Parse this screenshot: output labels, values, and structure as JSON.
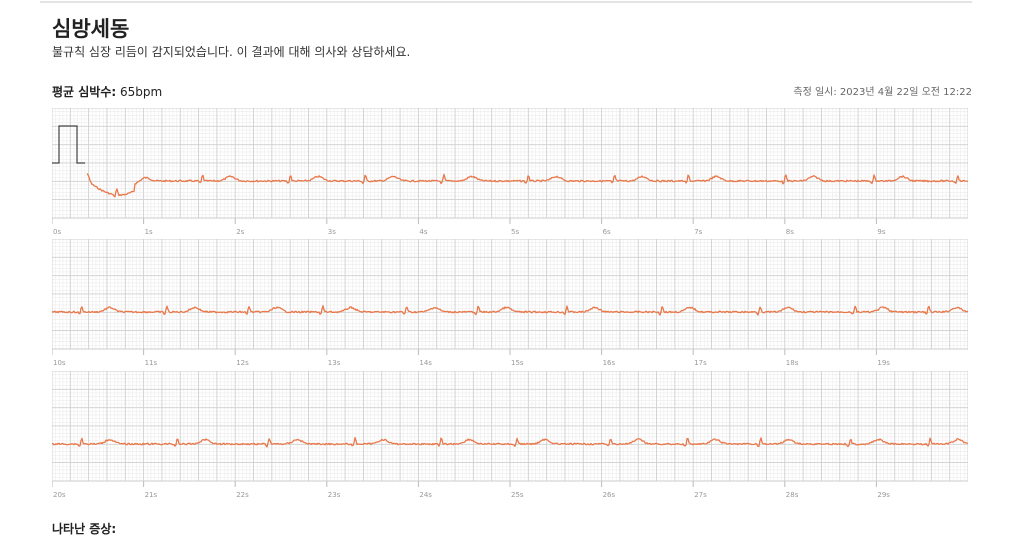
{
  "header": {
    "title": "심방세동",
    "subtitle": "불규칙 심장 리듬이 감지되었습니다. 이 결과에 대해 의사와 상담하세요.",
    "avg_hr_label": "평균 심박수:",
    "avg_hr_value": "65bpm",
    "measured_at": "측정 일시: 2023년 4월 22일 오전 12:22"
  },
  "ecg": {
    "trace_color": "#e8784a",
    "strips": [
      {
        "start_s": 0,
        "ticks": [
          "0s",
          "1s",
          "2s",
          "3s",
          "4s",
          "5s",
          "6s",
          "7s",
          "8s",
          "9s"
        ],
        "calibration_pulse": true
      },
      {
        "start_s": 10,
        "ticks": [
          "10s",
          "11s",
          "12s",
          "13s",
          "14s",
          "15s",
          "16s",
          "17s",
          "18s",
          "19s"
        ],
        "calibration_pulse": false
      },
      {
        "start_s": 20,
        "ticks": [
          "20s",
          "21s",
          "22s",
          "23s",
          "24s",
          "25s",
          "26s",
          "27s",
          "28s",
          "29s"
        ],
        "calibration_pulse": false
      }
    ]
  },
  "footer": {
    "symptoms_label": "나타난 증상:"
  }
}
